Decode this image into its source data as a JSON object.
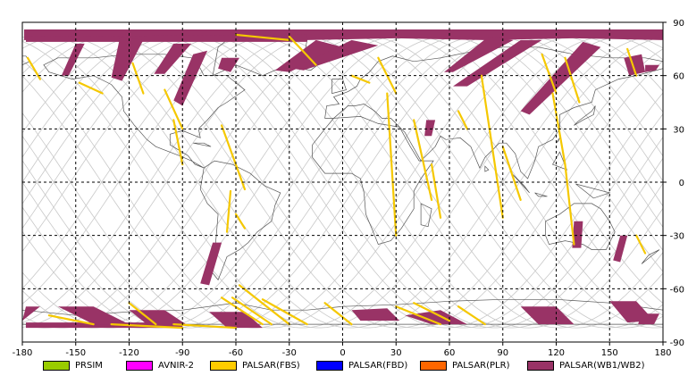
{
  "map": {
    "lon_ticks": [
      "-180",
      "-150",
      "-120",
      "-90",
      "-60",
      "-30",
      "0",
      "30",
      "60",
      "90",
      "120",
      "150",
      "180"
    ],
    "lat_ticks": [
      "90",
      "60",
      "30",
      "0",
      "-30",
      "-60",
      "-90"
    ],
    "colors": {
      "grid": "#000000",
      "orbit": "#c8c8c8",
      "coast": "#555555",
      "fbs": "#f5c800",
      "wb": "#993366"
    }
  },
  "legend": [
    {
      "label": "PRSIM",
      "color": "#99cc00"
    },
    {
      "label": "AVNIR-2",
      "color": "#ff00ff"
    },
    {
      "label": "PALSAR(FBS)",
      "color": "#ffcc00"
    },
    {
      "label": "PALSAR(FBD)",
      "color": "#0000ff"
    },
    {
      "label": "PALSAR(PLR)",
      "color": "#ff6600"
    },
    {
      "label": "PALSAR(WB1/WB2)",
      "color": "#993366"
    }
  ],
  "chart_data": {
    "type": "map",
    "x_range": [
      -180,
      180
    ],
    "y_range": [
      -90,
      90
    ],
    "grid": true,
    "x_ticks": [
      -180,
      -150,
      -120,
      -90,
      -60,
      -30,
      0,
      30,
      60,
      90,
      120,
      150,
      180
    ],
    "y_ticks": [
      90,
      60,
      30,
      0,
      -30,
      -60,
      -90
    ]
  }
}
